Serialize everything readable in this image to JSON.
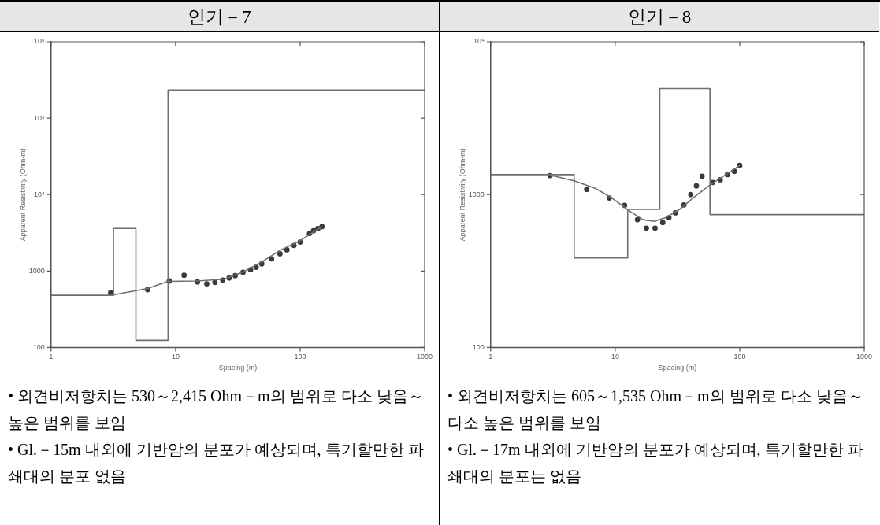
{
  "chart_data": [
    {
      "type": "line",
      "title": "인기－7",
      "xlabel": "Spacing (m)",
      "ylabel": "Apparent Resistivity (Ohm-m)",
      "log": "xy",
      "grid": false,
      "legend": false,
      "xlim": [
        1,
        1000
      ],
      "xticks": [
        1,
        10,
        100,
        1000
      ],
      "ylim": [
        100,
        1000000
      ],
      "yticks": [
        {
          "value": 100,
          "label": "100"
        },
        {
          "value": 1000,
          "label": "1000"
        },
        {
          "value": 10000,
          "label": "10⁴"
        },
        {
          "value": 100000,
          "label": "10⁵"
        },
        {
          "value": 1000000,
          "label": "10⁶"
        }
      ],
      "series": [
        {
          "type": "step",
          "color": "#6e6e6e",
          "x": [
            1,
            3.17,
            4.8,
            8.7,
            1000
          ],
          "values": [
            480,
            3600,
            124,
            234000,
            234000
          ]
        },
        {
          "type": "line",
          "color": "#6e6e6e",
          "x": [
            1,
            3.0,
            5.96,
            8.7,
            14.6,
            24.5,
            35.2,
            50.5,
            68.9,
            100,
            150
          ],
          "values": [
            480,
            480,
            590,
            730,
            740,
            780,
            980,
            1350,
            1860,
            2500,
            3800
          ]
        },
        {
          "type": "scatter",
          "color": "#3a3a3a",
          "marker": "circle",
          "x": [
            3.01,
            5.96,
            8.9,
            11.7,
            15.0,
            17.8,
            20.7,
            23.9,
            26.9,
            30.1,
            34.8,
            40,
            44.4,
            49.2,
            59,
            68.9,
            78.4,
            89.3,
            100,
            119,
            128,
            139,
            150
          ],
          "values": [
            520,
            570,
            740,
            880,
            720,
            680,
            710,
            760,
            810,
            870,
            960,
            1040,
            1120,
            1240,
            1440,
            1680,
            1890,
            2160,
            2390,
            3080,
            3360,
            3590,
            3810
          ]
        }
      ],
      "annotations": [
        "• 외견비저항치는 530～2,415 Ohm－m의 범위로 다소 낮음～높은 범위를 보임",
        "• Gl.－15m 내외에 기반암의 분포가 예상되며, 특기할만한 파쇄대의 분포 없음"
      ]
    },
    {
      "type": "line",
      "title": "인기－8",
      "xlabel": "Spacing (m)",
      "ylabel": "Apparent Resistivity (Ohm-m)",
      "log": "xy",
      "grid": false,
      "legend": false,
      "xlim": [
        1,
        1000
      ],
      "xticks": [
        1,
        10,
        100,
        1000
      ],
      "ylim": [
        100,
        10000
      ],
      "yticks": [
        {
          "value": 100,
          "label": "100"
        },
        {
          "value": 1000,
          "label": "1000"
        },
        {
          "value": 10000,
          "label": "10⁴"
        }
      ],
      "series": [
        {
          "type": "step",
          "color": "#6e6e6e",
          "x": [
            1,
            4.68,
            12.6,
            22.8,
            57.7,
            1000
          ],
          "values": [
            1350,
            385,
            800,
            4940,
            740,
            740
          ]
        },
        {
          "type": "line",
          "color": "#6e6e6e",
          "x": [
            3.0,
            4.68,
            6.9,
            9.4,
            12.9,
            16.7,
            20.6,
            25.4,
            32.9,
            44.9,
            58.2,
            79.6,
            100
          ],
          "values": [
            1340,
            1230,
            1100,
            950,
            785,
            685,
            668,
            706,
            800,
            990,
            1160,
            1370,
            1550
          ]
        },
        {
          "type": "scatter",
          "color": "#3a3a3a",
          "marker": "circle",
          "x": [
            3.0,
            5.9,
            8.97,
            11.9,
            15.1,
            17.8,
            20.9,
            24.1,
            27,
            30.4,
            35.6,
            40.5,
            44.9,
            49.9,
            60.7,
            69.8,
            79.6,
            90.6,
            100
          ],
          "values": [
            1330,
            1080,
            950,
            850,
            685,
            603,
            603,
            656,
            706,
            759,
            855,
            1000,
            1140,
            1320,
            1200,
            1250,
            1350,
            1420,
            1550
          ]
        }
      ],
      "annotations": [
        "• 외견비저항치는 605～1,535 Ohm－m의 범위로 다소 낮음～다소 높은 범위를 보임",
        "• Gl.－17m 내외에 기반암의 분포가 예상되며, 특기할만한 파쇄대의 분포는 없음"
      ]
    }
  ]
}
